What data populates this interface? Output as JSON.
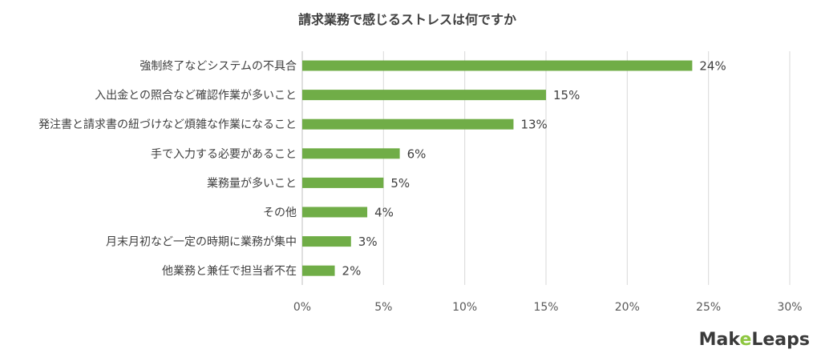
{
  "chart_data": {
    "type": "bar",
    "orientation": "horizontal",
    "title": "請求業務で感じるストレスは何ですか",
    "categories": [
      "強制終了などシステムの不具合",
      "入出金との照合など確認作業が多いこと",
      "発注書と請求書の紐づけなど煩雑な作業になること",
      "手で入力する必要があること",
      "業務量が多いこと",
      "その他",
      "月末月初など一定の時期に業務が集中",
      "他業務と兼任で担当者不在"
    ],
    "values": [
      24,
      15,
      13,
      6,
      5,
      4,
      3,
      2
    ],
    "data_labels": [
      "24%",
      "15%",
      "13%",
      "6%",
      "5%",
      "4%",
      "3%",
      "2%"
    ],
    "xlim": [
      0,
      30
    ],
    "x_ticks": [
      0,
      5,
      10,
      15,
      20,
      25,
      30
    ],
    "x_tick_labels": [
      "0%",
      "5%",
      "10%",
      "15%",
      "20%",
      "25%",
      "30%"
    ],
    "grid": true,
    "bar_color": "#70ad47",
    "legend": "none"
  },
  "brand": {
    "name": "MakeLeaps",
    "name_pre": "Mak",
    "name_accent": "e",
    "name_post": "Leaps",
    "accent_color": "#8dc63f",
    "text_color": "#3a3a3a"
  }
}
